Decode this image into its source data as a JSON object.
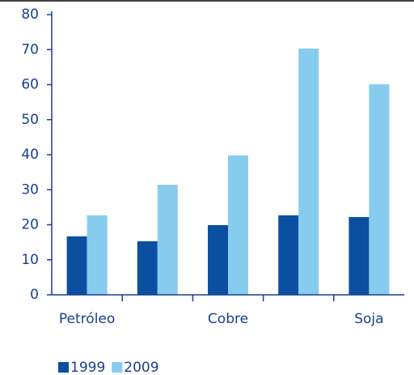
{
  "chart_data": {
    "type": "bar",
    "categories": [
      "Petróleo",
      null,
      "Cobre",
      null,
      "Soja"
    ],
    "series": [
      {
        "name": "1999",
        "color": "#0b4fa0",
        "values": [
          16.7,
          15.3,
          19.9,
          22.7,
          22.2
        ]
      },
      {
        "name": "2009",
        "color": "#87ccef",
        "values": [
          22.7,
          31.4,
          39.8,
          70.3,
          60.1
        ]
      }
    ],
    "ylim": [
      0,
      80
    ],
    "yticks": [
      0,
      10,
      20,
      30,
      40,
      50,
      60,
      70,
      80
    ]
  }
}
